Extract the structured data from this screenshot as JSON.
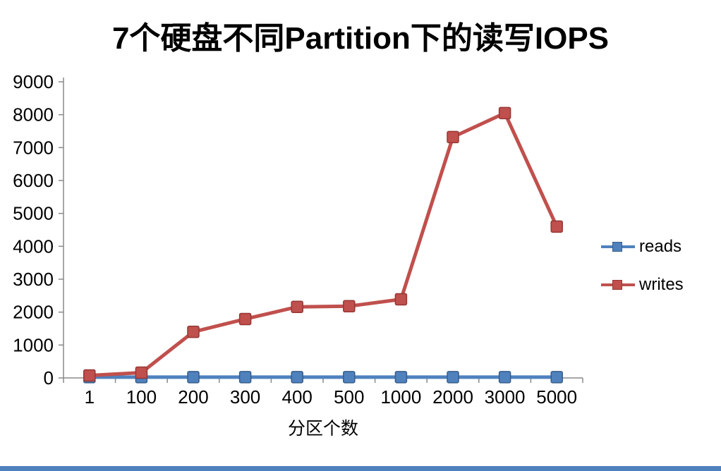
{
  "chart_data": {
    "type": "line",
    "title": "7个硬盘不同Partition下的读写IOPS",
    "xlabel": "分区个数",
    "ylabel": "",
    "ylim": [
      0,
      9000
    ],
    "ytick_step": 1000,
    "grid": false,
    "legend_position": "right",
    "categories": [
      "1",
      "100",
      "200",
      "300",
      "400",
      "500",
      "1000",
      "2000",
      "3000",
      "5000"
    ],
    "series": [
      {
        "name": "reads",
        "color": "#4F81BD",
        "border_color": "#385D8A",
        "values": [
          25,
          25,
          25,
          25,
          25,
          25,
          25,
          25,
          25,
          25
        ]
      },
      {
        "name": "writes",
        "color": "#C0504D",
        "border_color": "#953735",
        "values": [
          75,
          160,
          1400,
          1790,
          2160,
          2180,
          2390,
          7320,
          8050,
          4600
        ]
      }
    ]
  },
  "accent": {
    "bottom_bar_color": "#4F81BD",
    "axis_color": "#8a8a8a"
  }
}
